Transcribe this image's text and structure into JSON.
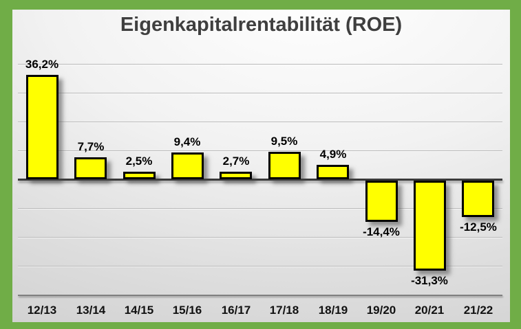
{
  "chart_data": {
    "type": "bar",
    "title": "Eigenkapitalrentabilität (ROE)",
    "categories": [
      "12/13",
      "13/14",
      "14/15",
      "15/16",
      "16/17",
      "17/18",
      "18/19",
      "19/20",
      "20/21",
      "21/22"
    ],
    "values": [
      36.2,
      7.7,
      2.5,
      9.4,
      2.7,
      9.5,
      4.9,
      -14.4,
      -31.3,
      -12.5
    ],
    "value_labels": [
      "36,2%",
      "7,7%",
      "2,5%",
      "9,4%",
      "2,7%",
      "9,5%",
      "4,9%",
      "-14,4%",
      "-31,3%",
      "-12,5%"
    ],
    "xlabel": "",
    "ylabel": "",
    "ylim": [
      -40,
      40
    ],
    "grid_step": 10,
    "grid": true,
    "legend": false,
    "number_format": "german-percent",
    "colors": {
      "bar_fill": "#FFFF00",
      "bar_border": "#000000",
      "frame": "#70AD47",
      "title_text": "#3F3F3F",
      "zero_line": "#3A3A3A",
      "gridline": "#B9B9B9",
      "bottom_gridline": "#7F7F7F",
      "label_text": "#000000"
    }
  }
}
